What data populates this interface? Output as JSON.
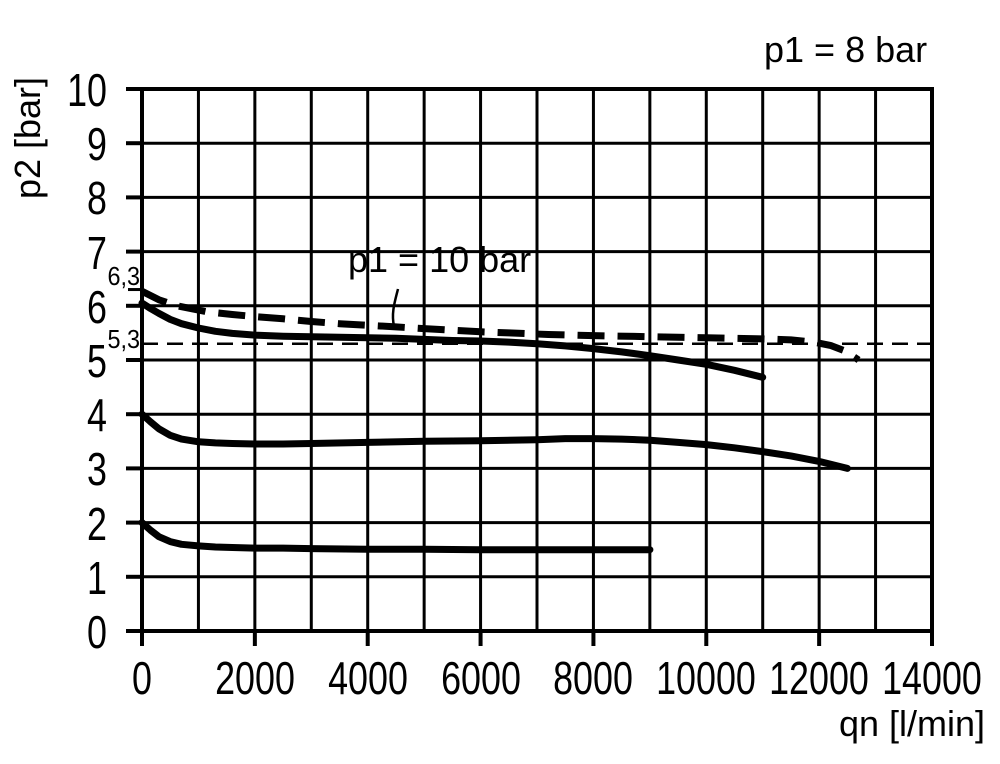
{
  "page": {
    "background": "#ffffff",
    "ink": "#000000"
  },
  "chart_data": {
    "type": "line",
    "title_annotation": "p1 = 8 bar",
    "curve_annotation": "p1 = 10 bar",
    "xlabel": "qn [l/min]",
    "ylabel": "p2 [bar]",
    "xlim": [
      0,
      14000
    ],
    "ylim": [
      0,
      10
    ],
    "x_ticks": [
      0,
      2000,
      4000,
      6000,
      8000,
      10000,
      12000,
      14000
    ],
    "y_ticks": [
      0,
      1,
      2,
      3,
      4,
      5,
      6,
      7,
      8,
      9,
      10
    ],
    "x_grid_step": 1000,
    "y_grid_step": 1,
    "grid": true,
    "legend": "none",
    "special_marks": {
      "y_6_3": {
        "value": 6.3,
        "label": "6,3"
      },
      "y_5_3": {
        "value": 5.3,
        "label": "5,3"
      }
    },
    "reference_line": {
      "y": 5.3,
      "style": "thin-dashed"
    },
    "annotation_target": {
      "x": 4500,
      "y": 5.6
    },
    "series": [
      {
        "name": "p1 = 10 bar",
        "style": "thick-dashed",
        "points": [
          [
            0,
            6.27
          ],
          [
            300,
            6.11
          ],
          [
            620,
            6.0
          ],
          [
            1150,
            5.89
          ],
          [
            1600,
            5.84
          ],
          [
            2000,
            5.8
          ],
          [
            2500,
            5.76
          ],
          [
            3000,
            5.71
          ],
          [
            3500,
            5.67
          ],
          [
            4000,
            5.64
          ],
          [
            4500,
            5.61
          ],
          [
            5000,
            5.58
          ],
          [
            5500,
            5.55
          ],
          [
            6000,
            5.52
          ],
          [
            6500,
            5.5
          ],
          [
            7200,
            5.47
          ],
          [
            8000,
            5.45
          ],
          [
            9000,
            5.43
          ],
          [
            10000,
            5.41
          ],
          [
            11000,
            5.39
          ],
          [
            11500,
            5.37
          ],
          [
            11900,
            5.33
          ],
          [
            12200,
            5.27
          ],
          [
            12450,
            5.17
          ],
          [
            12700,
            5.0
          ]
        ]
      },
      {
        "name": "p1 = 8 bar",
        "style": "thick-solid",
        "points": [
          [
            0,
            6.05
          ],
          [
            150,
            5.95
          ],
          [
            300,
            5.86
          ],
          [
            500,
            5.75
          ],
          [
            700,
            5.67
          ],
          [
            1000,
            5.59
          ],
          [
            1300,
            5.53
          ],
          [
            1600,
            5.49
          ],
          [
            2000,
            5.46
          ],
          [
            2500,
            5.44
          ],
          [
            3000,
            5.43
          ],
          [
            3500,
            5.42
          ],
          [
            4000,
            5.41
          ],
          [
            4500,
            5.4
          ],
          [
            5000,
            5.38
          ],
          [
            5500,
            5.36
          ],
          [
            6000,
            5.35
          ],
          [
            6500,
            5.33
          ],
          [
            7000,
            5.3
          ],
          [
            7500,
            5.26
          ],
          [
            8000,
            5.21
          ],
          [
            8500,
            5.15
          ],
          [
            9000,
            5.08
          ],
          [
            9500,
            5.0
          ],
          [
            10000,
            4.92
          ],
          [
            10500,
            4.81
          ],
          [
            11000,
            4.68
          ]
        ]
      },
      {
        "name": "unlabeled (plateau 3.5 bar)",
        "style": "thick-solid",
        "points": [
          [
            0,
            4.0
          ],
          [
            150,
            3.86
          ],
          [
            300,
            3.73
          ],
          [
            500,
            3.61
          ],
          [
            700,
            3.54
          ],
          [
            1000,
            3.49
          ],
          [
            1300,
            3.47
          ],
          [
            1600,
            3.46
          ],
          [
            2000,
            3.45
          ],
          [
            2500,
            3.45
          ],
          [
            3000,
            3.46
          ],
          [
            4000,
            3.48
          ],
          [
            5000,
            3.5
          ],
          [
            6000,
            3.51
          ],
          [
            7000,
            3.53
          ],
          [
            7500,
            3.55
          ],
          [
            8000,
            3.55
          ],
          [
            8500,
            3.54
          ],
          [
            9000,
            3.52
          ],
          [
            9500,
            3.48
          ],
          [
            10000,
            3.44
          ],
          [
            10500,
            3.38
          ],
          [
            11000,
            3.31
          ],
          [
            11500,
            3.23
          ],
          [
            12000,
            3.13
          ],
          [
            12500,
            3.0
          ]
        ]
      },
      {
        "name": "unlabeled (plateau 1.5 bar)",
        "style": "thick-solid",
        "points": [
          [
            0,
            2.0
          ],
          [
            150,
            1.86
          ],
          [
            300,
            1.74
          ],
          [
            500,
            1.65
          ],
          [
            700,
            1.6
          ],
          [
            1000,
            1.57
          ],
          [
            1300,
            1.55
          ],
          [
            1600,
            1.54
          ],
          [
            2000,
            1.53
          ],
          [
            2500,
            1.53
          ],
          [
            3000,
            1.52
          ],
          [
            4000,
            1.51
          ],
          [
            5000,
            1.51
          ],
          [
            6000,
            1.5
          ],
          [
            7000,
            1.5
          ],
          [
            8000,
            1.5
          ],
          [
            9000,
            1.5
          ]
        ]
      }
    ]
  }
}
